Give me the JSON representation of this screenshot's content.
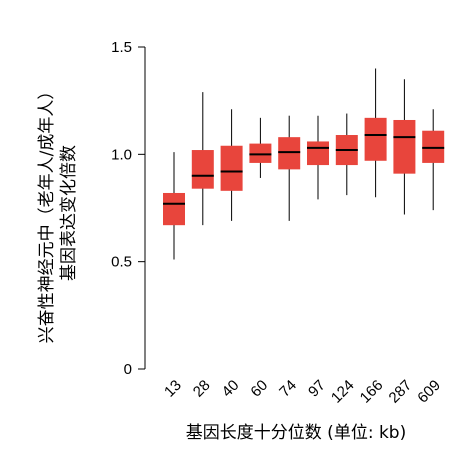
{
  "chart_data": {
    "type": "box",
    "title": "",
    "xlabel": "基因长度十分位数 (单位: kb)",
    "ylabel_line1": "兴奋性神经元中（老年人/成年人）",
    "ylabel_line2": "基因表达变化倍数",
    "categories": [
      "13",
      "28",
      "40",
      "60",
      "74",
      "97",
      "124",
      "166",
      "287",
      "609"
    ],
    "ylim": [
      0,
      1.5
    ],
    "yticks": [
      {
        "value": 0,
        "label": "0"
      },
      {
        "value": 0.5,
        "label": "0.5"
      },
      {
        "value": 1.0,
        "label": "1.0"
      },
      {
        "value": 1.5,
        "label": "1.5"
      }
    ],
    "boxes": [
      {
        "category": "13",
        "whisker_low": 0.51,
        "q1": 0.67,
        "median": 0.77,
        "q3": 0.82,
        "whisker_high": 1.01
      },
      {
        "category": "28",
        "whisker_low": 0.67,
        "q1": 0.84,
        "median": 0.9,
        "q3": 1.02,
        "whisker_high": 1.29
      },
      {
        "category": "40",
        "whisker_low": 0.69,
        "q1": 0.83,
        "median": 0.92,
        "q3": 1.04,
        "whisker_high": 1.21
      },
      {
        "category": "60",
        "whisker_low": 0.89,
        "q1": 0.96,
        "median": 1.0,
        "q3": 1.05,
        "whisker_high": 1.17
      },
      {
        "category": "74",
        "whisker_low": 0.69,
        "q1": 0.93,
        "median": 1.01,
        "q3": 1.08,
        "whisker_high": 1.18
      },
      {
        "category": "97",
        "whisker_low": 0.79,
        "q1": 0.95,
        "median": 1.03,
        "q3": 1.06,
        "whisker_high": 1.18
      },
      {
        "category": "124",
        "whisker_low": 0.81,
        "q1": 0.95,
        "median": 1.02,
        "q3": 1.09,
        "whisker_high": 1.19
      },
      {
        "category": "166",
        "whisker_low": 0.8,
        "q1": 0.97,
        "median": 1.09,
        "q3": 1.17,
        "whisker_high": 1.4
      },
      {
        "category": "287",
        "whisker_low": 0.72,
        "q1": 0.91,
        "median": 1.08,
        "q3": 1.16,
        "whisker_high": 1.35
      },
      {
        "category": "609",
        "whisker_low": 0.74,
        "q1": 0.96,
        "median": 1.03,
        "q3": 1.11,
        "whisker_high": 1.21
      }
    ],
    "colors": {
      "box_fill": "#e8453c",
      "median_line": "#000000",
      "whisker": "#000000",
      "axis": "#000000"
    },
    "grid": false,
    "legend": "none"
  }
}
